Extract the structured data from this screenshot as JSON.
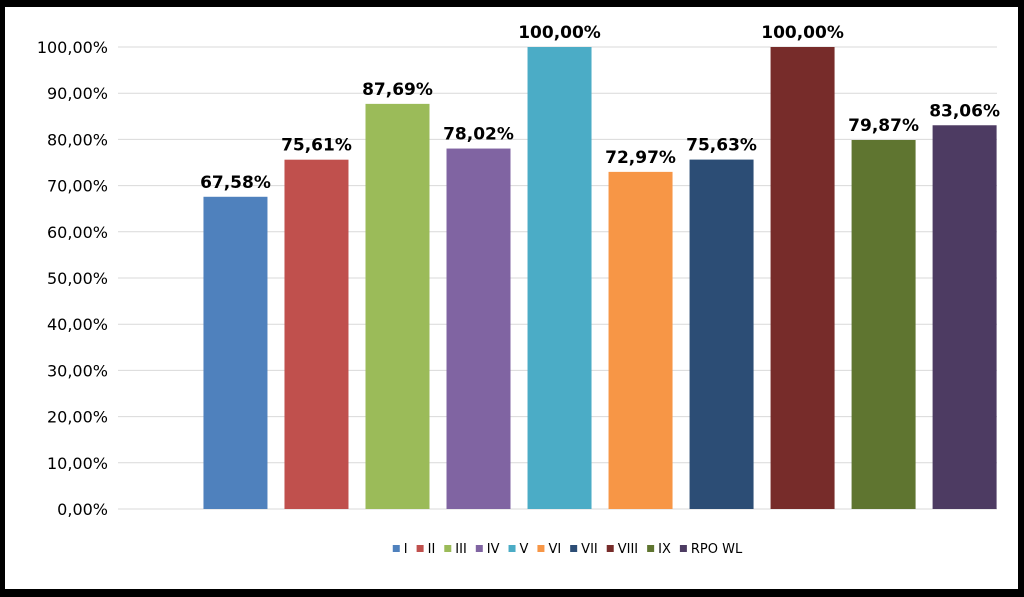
{
  "chart_data": {
    "type": "bar",
    "categories": [
      "I",
      "II",
      "III",
      "IV",
      "V",
      "VI",
      "VII",
      "VIII",
      "IX",
      "RPO WL"
    ],
    "values": [
      67.58,
      75.61,
      87.69,
      78.02,
      100.0,
      72.97,
      75.63,
      100.0,
      79.87,
      83.06
    ],
    "data_labels": [
      "67,58%",
      "75,61%",
      "87,69%",
      "78,02%",
      "100,00%",
      "72,97%",
      "75,63%",
      "100,00%",
      "79,87%",
      "83,06%"
    ],
    "colors": [
      "#4f81bd",
      "#c0504d",
      "#9bbb59",
      "#8064a2",
      "#4bacc6",
      "#f79646",
      "#2c4d75",
      "#772c2a",
      "#5f7530",
      "#4d3b62"
    ],
    "ylim": [
      0,
      100
    ],
    "yticks": [
      0,
      10,
      20,
      30,
      40,
      50,
      60,
      70,
      80,
      90,
      100
    ],
    "ytick_labels": [
      "0,00%",
      "10,00%",
      "20,00%",
      "30,00%",
      "40,00%",
      "50,00%",
      "60,00%",
      "70,00%",
      "80,00%",
      "90,00%",
      "100,00%"
    ],
    "grid": true,
    "legend_position": "bottom",
    "title": "",
    "xlabel": "",
    "ylabel": ""
  }
}
